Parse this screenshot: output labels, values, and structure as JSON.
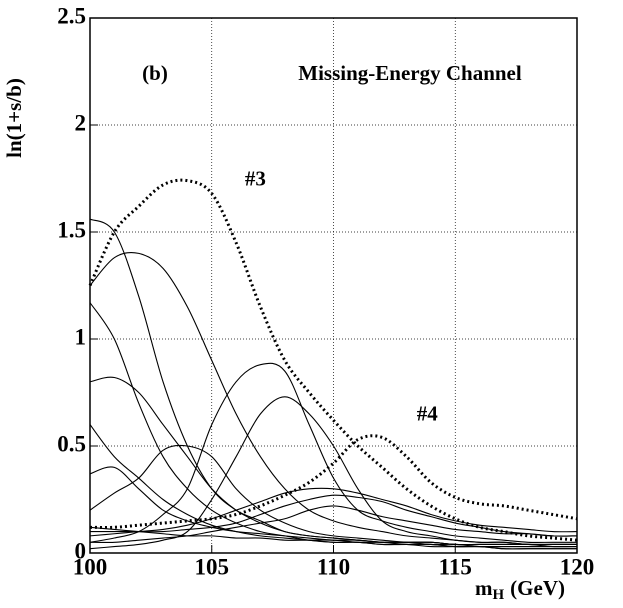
{
  "chart_data": {
    "type": "line",
    "y_label": "ln(1+s/b)",
    "x_label": [
      "m",
      "H",
      "(GeV)"
    ],
    "annotations": [
      "(b)",
      "Missing-Energy Channel"
    ],
    "x": [
      100,
      101,
      102,
      103,
      104,
      105,
      106,
      107,
      108,
      109,
      110,
      111,
      112,
      113,
      114,
      115,
      116,
      117,
      118,
      119,
      120
    ],
    "xlim": [
      100,
      120
    ],
    "xticks": [
      100,
      105,
      110,
      115,
      120
    ],
    "ylim": [
      0,
      2.5
    ],
    "yticks": [
      0,
      0.5,
      1,
      1.5,
      2,
      2.5
    ],
    "grid": true,
    "series": [
      {
        "name": "#3",
        "color": "#000000",
        "dash": "dotted",
        "values": [
          1.25,
          1.5,
          1.62,
          1.72,
          1.74,
          1.68,
          1.45,
          1.15,
          0.9,
          0.75,
          0.62,
          0.5,
          0.4,
          0.3,
          0.22,
          0.16,
          0.12,
          0.1,
          0.08,
          0.07,
          0.06
        ]
      },
      {
        "name": "#4",
        "color": "#000000",
        "dash": "dotted",
        "values": [
          0.12,
          0.12,
          0.13,
          0.14,
          0.15,
          0.16,
          0.18,
          0.22,
          0.27,
          0.33,
          0.42,
          0.53,
          0.54,
          0.45,
          0.33,
          0.26,
          0.23,
          0.22,
          0.2,
          0.18,
          0.16
        ]
      },
      {
        "color": "#000000",
        "values": [
          1.56,
          1.5,
          1.2,
          0.8,
          0.5,
          0.3,
          0.2,
          0.15,
          0.1,
          0.08,
          0.07,
          0.06,
          0.05,
          0.04,
          0.04,
          0.03,
          0.03,
          0.02,
          0.02,
          0.02,
          0.02
        ]
      },
      {
        "color": "#000000",
        "values": [
          1.25,
          1.38,
          1.4,
          1.33,
          1.15,
          0.9,
          0.65,
          0.45,
          0.3,
          0.2,
          0.15,
          0.12,
          0.1,
          0.08,
          0.07,
          0.06,
          0.05,
          0.05,
          0.04,
          0.04,
          0.04
        ]
      },
      {
        "color": "#000000",
        "values": [
          1.17,
          1.0,
          0.7,
          0.45,
          0.3,
          0.2,
          0.14,
          0.1,
          0.08,
          0.06,
          0.05,
          0.05,
          0.04,
          0.04,
          0.03,
          0.03,
          0.03,
          0.02,
          0.02,
          0.02,
          0.02
        ]
      },
      {
        "color": "#000000",
        "values": [
          0.8,
          0.82,
          0.75,
          0.6,
          0.45,
          0.3,
          0.2,
          0.14,
          0.1,
          0.08,
          0.07,
          0.06,
          0.05,
          0.05,
          0.04,
          0.04,
          0.03,
          0.03,
          0.03,
          0.03,
          0.03
        ]
      },
      {
        "color": "#000000",
        "values": [
          0.05,
          0.07,
          0.1,
          0.18,
          0.3,
          0.6,
          0.8,
          0.88,
          0.85,
          0.6,
          0.35,
          0.2,
          0.15,
          0.12,
          0.1,
          0.08,
          0.07,
          0.06,
          0.05,
          0.05,
          0.05
        ]
      },
      {
        "color": "#000000",
        "values": [
          0.02,
          0.03,
          0.04,
          0.06,
          0.1,
          0.25,
          0.45,
          0.65,
          0.73,
          0.65,
          0.5,
          0.3,
          0.15,
          0.1,
          0.08,
          0.06,
          0.05,
          0.05,
          0.04,
          0.04,
          0.04
        ]
      },
      {
        "color": "#000000",
        "values": [
          0.6,
          0.45,
          0.35,
          0.25,
          0.18,
          0.13,
          0.1,
          0.08,
          0.07,
          0.06,
          0.05,
          0.05,
          0.04,
          0.04,
          0.04,
          0.03,
          0.03,
          0.03,
          0.03,
          0.03,
          0.03
        ]
      },
      {
        "color": "#000000",
        "values": [
          0.2,
          0.28,
          0.35,
          0.48,
          0.5,
          0.45,
          0.3,
          0.2,
          0.14,
          0.1,
          0.08,
          0.07,
          0.06,
          0.05,
          0.05,
          0.04,
          0.04,
          0.04,
          0.04,
          0.03,
          0.03
        ]
      },
      {
        "color": "#000000",
        "values": [
          0.08,
          0.09,
          0.1,
          0.11,
          0.13,
          0.16,
          0.2,
          0.24,
          0.28,
          0.3,
          0.3,
          0.28,
          0.25,
          0.22,
          0.18,
          0.15,
          0.13,
          0.12,
          0.11,
          0.1,
          0.1
        ]
      },
      {
        "color": "#000000",
        "values": [
          0.37,
          0.4,
          0.3,
          0.2,
          0.15,
          0.12,
          0.1,
          0.09,
          0.08,
          0.07,
          0.06,
          0.06,
          0.05,
          0.05,
          0.05,
          0.04,
          0.04,
          0.04,
          0.04,
          0.04,
          0.04
        ]
      },
      {
        "color": "#000000",
        "values": [
          0.1,
          0.1,
          0.1,
          0.1,
          0.11,
          0.12,
          0.14,
          0.18,
          0.22,
          0.25,
          0.27,
          0.26,
          0.24,
          0.2,
          0.17,
          0.14,
          0.12,
          0.1,
          0.09,
          0.08,
          0.08
        ]
      },
      {
        "color": "#000000",
        "values": [
          0.12,
          0.11,
          0.1,
          0.09,
          0.08,
          0.08,
          0.07,
          0.07,
          0.06,
          0.06,
          0.06,
          0.05,
          0.05,
          0.05,
          0.05,
          0.04,
          0.04,
          0.04,
          0.04,
          0.04,
          0.04
        ]
      },
      {
        "color": "#000000",
        "values": [
          0.05,
          0.05,
          0.06,
          0.07,
          0.08,
          0.1,
          0.12,
          0.14,
          0.16,
          0.2,
          0.22,
          0.2,
          0.17,
          0.15,
          0.13,
          0.11,
          0.1,
          0.09,
          0.09,
          0.08,
          0.08
        ]
      }
    ]
  }
}
